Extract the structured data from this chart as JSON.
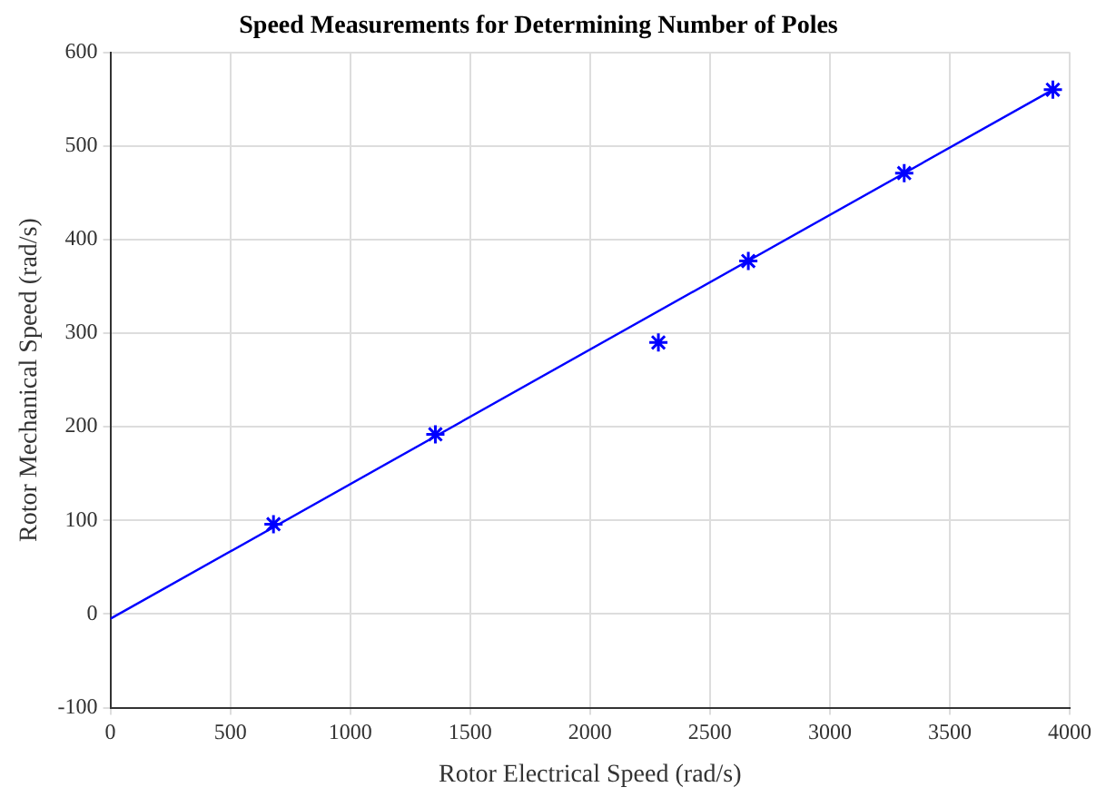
{
  "chart_data": {
    "type": "scatter",
    "title": "Speed Measurements for Determining Number of Poles",
    "xlabel": "Rotor Electrical Speed (rad/s)",
    "ylabel": "Rotor Mechanical Speed (rad/s)",
    "series": [
      {
        "color": "#0000ff",
        "marker": "cross",
        "x": [
          680,
          1355,
          2285,
          2660,
          3310,
          3930
        ],
        "values": [
          96,
          192,
          290,
          377,
          471,
          560
        ]
      },
      {
        "type": "line",
        "color": "#0000ff",
        "marker": "none",
        "line_style": "solid",
        "x": [
          0,
          3930
        ],
        "values": [
          -5,
          560
        ]
      }
    ],
    "xlim": [
      0,
      4000
    ],
    "xticks": [
      0,
      500,
      1000,
      1500,
      2000,
      2500,
      3000,
      3500,
      4000
    ],
    "ylim": [
      -100,
      600
    ],
    "yticks": [
      -100,
      0,
      100,
      200,
      300,
      400,
      500,
      600
    ],
    "grid": true,
    "legend": false
  }
}
